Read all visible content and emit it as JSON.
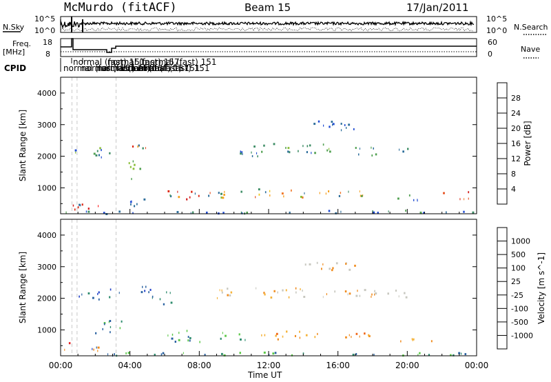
{
  "header": {
    "station": "McMurdo (fitACF)",
    "beam": "Beam 15",
    "date": "17/Jan/2011"
  },
  "noise_panel": {
    "left_label": "N.Sky",
    "left_ticks": [
      "10^5",
      "10^0"
    ],
    "right_ticks": [
      "10^5",
      "10^0"
    ],
    "right_label": "N.Search",
    "right_legend_style": "dotted"
  },
  "freq_panel": {
    "left_label_line1": "Freq.",
    "left_label_line2": "[MHz]",
    "left_ticks": [
      "18",
      "8"
    ],
    "right_ticks": [
      "60",
      "0"
    ],
    "right_label": "Nave",
    "right_legend_style": "dotted"
  },
  "cpid": {
    "label": "CPID",
    "annotations": [
      "normal (fast) 151",
      "normal (fast) 151",
      "normal (fast) 151",
      "normal (fast) 157",
      "normal (fast) 157",
      "normal (fast) 157",
      "normal (fast) 151",
      "normal (fast) 151",
      "normal (fast) 151"
    ]
  },
  "chart_data": [
    {
      "type": "heatmap",
      "quantity": "Power",
      "ylabel": "Slant Range [km]",
      "xlabel": "Time UT",
      "ylim": [
        180,
        4500
      ],
      "yticks": [
        1000,
        2000,
        3000,
        4000
      ],
      "xlim_hours": [
        0,
        24
      ],
      "xticks": [
        "00:00",
        "04:00",
        "08:00",
        "12:00",
        "16:00",
        "20:00",
        "00:00"
      ],
      "colorbar": {
        "label": "Power [dB]",
        "ticks": [
          "4",
          "8",
          "12",
          "16",
          "20",
          "24",
          "28"
        ],
        "colors": [
          "#0000ff",
          "#1e4bd2",
          "#2d6e9b",
          "#3c8c64",
          "#50a050",
          "#8cbe3c",
          "#c8dc28",
          "#f0c81e",
          "#f5a01e",
          "#f07828",
          "#e65020",
          "#dc2814",
          "#d21e1e",
          "#ff0000"
        ]
      }
    },
    {
      "type": "heatmap",
      "quantity": "Velocity",
      "ylabel": "Slant Range [km]",
      "xlabel": "Time UT",
      "ylim": [
        180,
        4500
      ],
      "yticks": [
        1000,
        2000,
        3000,
        4000
      ],
      "xlim_hours": [
        0,
        24
      ],
      "xticks": [
        "00:00",
        "04:00",
        "08:00",
        "12:00",
        "16:00",
        "20:00",
        "00:00"
      ],
      "colorbar": {
        "label": "Velocity [m s^-1]",
        "ticks": [
          "1000",
          "500",
          "100",
          "25",
          "-25",
          "-100",
          "-500",
          "-1000"
        ],
        "colors": [
          "#2040c8",
          "#2860a0",
          "#2e8c6e",
          "#5ac846",
          "#c8c8c0",
          "#f5b43c",
          "#f08c1e",
          "#f06414",
          "#e61e1e"
        ]
      }
    }
  ],
  "scatter_blobs": {
    "power": [
      {
        "t": 2.0,
        "r": 2150,
        "w": 2.6,
        "h": 380,
        "c": [
          2,
          3,
          4,
          5,
          1
        ]
      },
      {
        "t": 4.5,
        "r": 2300,
        "w": 1.2,
        "h": 380,
        "c": [
          2,
          8,
          9,
          10,
          11,
          3
        ]
      },
      {
        "t": 4.1,
        "r": 1600,
        "w": 1.0,
        "h": 700,
        "c": [
          2,
          4,
          5,
          6
        ]
      },
      {
        "t": 7.4,
        "r": 800,
        "w": 2.6,
        "h": 420,
        "c": [
          2,
          4,
          8,
          9,
          10,
          11,
          12
        ]
      },
      {
        "t": 9.5,
        "r": 800,
        "w": 2.0,
        "h": 350,
        "c": [
          2,
          3,
          5,
          8,
          9,
          10
        ]
      },
      {
        "t": 11.3,
        "r": 850,
        "w": 1.6,
        "h": 350,
        "c": [
          2,
          3,
          7,
          8,
          9,
          10
        ]
      },
      {
        "t": 13.6,
        "r": 850,
        "w": 1.8,
        "h": 300,
        "c": [
          2,
          3,
          5,
          8,
          9
        ]
      },
      {
        "t": 16.0,
        "r": 850,
        "w": 3.0,
        "h": 320,
        "c": [
          2,
          3,
          4,
          8,
          9
        ]
      },
      {
        "t": 20.0,
        "r": 700,
        "w": 2.0,
        "h": 250,
        "c": [
          1,
          2,
          3,
          4
        ]
      },
      {
        "t": 22.8,
        "r": 800,
        "w": 1.6,
        "h": 300,
        "c": [
          9,
          10,
          11,
          12,
          13,
          8
        ]
      },
      {
        "t": 10.5,
        "r": 2200,
        "w": 2.4,
        "h": 400,
        "c": [
          1,
          2,
          3
        ]
      },
      {
        "t": 13.5,
        "r": 2300,
        "w": 4.0,
        "h": 400,
        "c": [
          1,
          2,
          3,
          4,
          5
        ]
      },
      {
        "t": 17.5,
        "r": 2200,
        "w": 1.8,
        "h": 350,
        "c": [
          1,
          2,
          3,
          4
        ]
      },
      {
        "t": 19.5,
        "r": 2150,
        "w": 1.2,
        "h": 250,
        "c": [
          1,
          2,
          3
        ]
      },
      {
        "t": 1.5,
        "r": 400,
        "w": 2.2,
        "h": 350,
        "c": [
          13,
          12,
          11,
          2
        ]
      },
      {
        "t": 12,
        "r": 260,
        "w": 24,
        "h": 120,
        "c": [
          1,
          2,
          3,
          4
        ]
      },
      {
        "t": 5.0,
        "r": 600,
        "w": 2.0,
        "h": 300,
        "c": [
          1,
          2
        ]
      },
      {
        "t": 15.5,
        "r": 3000,
        "w": 3.0,
        "h": 400,
        "c": [
          1,
          2
        ]
      }
    ],
    "velocity": [
      {
        "t": 2.2,
        "r": 2150,
        "w": 2.4,
        "h": 380,
        "c": [
          0,
          1,
          2
        ]
      },
      {
        "t": 4.6,
        "r": 2200,
        "w": 1.3,
        "h": 450,
        "c": [
          0,
          1
        ]
      },
      {
        "t": 2.8,
        "r": 1100,
        "w": 1.8,
        "h": 500,
        "c": [
          2,
          3,
          1
        ]
      },
      {
        "t": 7.4,
        "r": 800,
        "w": 2.6,
        "h": 420,
        "c": [
          2,
          3,
          1
        ]
      },
      {
        "t": 10.0,
        "r": 850,
        "w": 1.6,
        "h": 350,
        "c": [
          3,
          2
        ]
      },
      {
        "t": 12.3,
        "r": 850,
        "w": 1.8,
        "h": 380,
        "c": [
          6,
          5,
          7
        ]
      },
      {
        "t": 14.2,
        "r": 900,
        "w": 1.8,
        "h": 300,
        "c": [
          6,
          5
        ]
      },
      {
        "t": 16.8,
        "r": 850,
        "w": 2.6,
        "h": 300,
        "c": [
          6,
          5,
          7
        ]
      },
      {
        "t": 20.5,
        "r": 700,
        "w": 2.0,
        "h": 250,
        "c": [
          6,
          5
        ]
      },
      {
        "t": 11.5,
        "r": 2200,
        "w": 5.0,
        "h": 420,
        "c": [
          4,
          4,
          6,
          5
        ]
      },
      {
        "t": 16.5,
        "r": 2200,
        "w": 3.5,
        "h": 400,
        "c": [
          4,
          6
        ]
      },
      {
        "t": 19.5,
        "r": 2150,
        "w": 1.5,
        "h": 300,
        "c": [
          4,
          4
        ]
      },
      {
        "t": 1.2,
        "r": 450,
        "w": 2.0,
        "h": 350,
        "c": [
          8,
          0,
          1,
          6
        ]
      },
      {
        "t": 12,
        "r": 260,
        "w": 24,
        "h": 120,
        "c": [
          2,
          3,
          1
        ]
      },
      {
        "t": 15.5,
        "r": 3000,
        "w": 3.0,
        "h": 400,
        "c": [
          4,
          6
        ]
      },
      {
        "t": 5.8,
        "r": 2000,
        "w": 1.4,
        "h": 500,
        "c": [
          1,
          2
        ]
      }
    ]
  }
}
